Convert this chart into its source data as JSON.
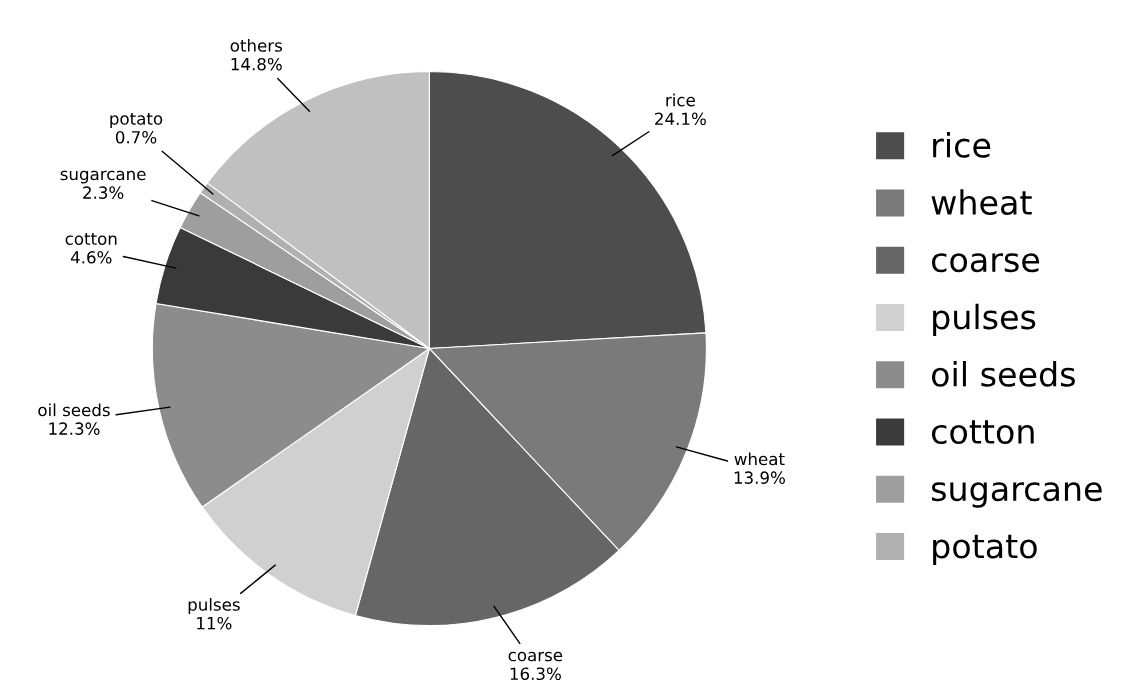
{
  "chart_data": {
    "type": "pie",
    "categories": [
      "rice",
      "wheat",
      "coarse",
      "pulses",
      "oil seeds",
      "cotton",
      "sugarcane",
      "potato",
      "others"
    ],
    "values": [
      24.1,
      13.9,
      16.3,
      11,
      12.3,
      4.6,
      2.3,
      0.7,
      14.8
    ],
    "value_labels": [
      "24.1%",
      "13.9%",
      "16.3%",
      "11%",
      "12.3%",
      "4.6%",
      "2.3%",
      "0.7%",
      "14.8%"
    ],
    "colors": [
      "#4d4d4d",
      "#7a7a7a",
      "#666666",
      "#d0d0d0",
      "#8c8c8c",
      "#3a3a3a",
      "#9e9e9e",
      "#b0b0b0",
      "#c0c0c0"
    ],
    "legend": "right"
  }
}
